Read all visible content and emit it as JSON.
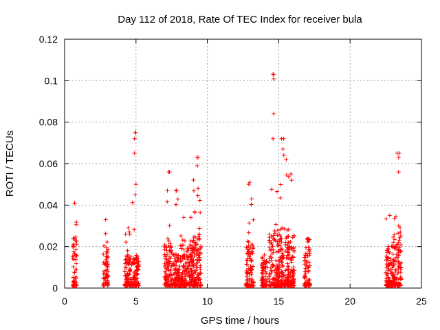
{
  "chart_data": {
    "type": "scatter",
    "title": "Day 112 of 2018, Rate Of TEC Index for receiver bula",
    "xlabel": "GPS time / hours",
    "ylabel": "ROTI / TECUs",
    "xlim": [
      0,
      25
    ],
    "ylim": [
      0,
      0.12
    ],
    "xticks": [
      0,
      5,
      10,
      15,
      20,
      25
    ],
    "xtick_labels": [
      "0",
      "5",
      "10",
      "15",
      "20",
      "25"
    ],
    "yticks": [
      0,
      0.02,
      0.04,
      0.06,
      0.08,
      0.1,
      0.12
    ],
    "ytick_labels": [
      "0",
      "0.02",
      "0.04",
      "0.06",
      "0.08",
      "0.1",
      "0.12"
    ],
    "grid": true,
    "marker": "plus",
    "color": "#ff0000",
    "clusters": [
      {
        "x_start": 0.55,
        "x_end": 0.85,
        "typical_max": 0.025,
        "peak": 0.041
      },
      {
        "x_start": 2.7,
        "x_end": 3.05,
        "typical_max": 0.02,
        "peak": 0.033
      },
      {
        "x_start": 4.2,
        "x_end": 4.7,
        "typical_max": 0.015,
        "peak": 0.029
      },
      {
        "x_start": 4.75,
        "x_end": 5.2,
        "typical_max": 0.015,
        "peak": 0.075
      },
      {
        "x_start": 7.0,
        "x_end": 7.6,
        "typical_max": 0.02,
        "peak": 0.056
      },
      {
        "x_start": 7.6,
        "x_end": 8.1,
        "typical_max": 0.015,
        "peak": 0.047
      },
      {
        "x_start": 8.1,
        "x_end": 8.6,
        "typical_max": 0.02,
        "peak": 0.034
      },
      {
        "x_start": 8.6,
        "x_end": 9.1,
        "typical_max": 0.02,
        "peak": 0.034
      },
      {
        "x_start": 9.0,
        "x_end": 9.55,
        "typical_max": 0.025,
        "peak": 0.063
      },
      {
        "x_start": 12.7,
        "x_end": 13.25,
        "typical_max": 0.02,
        "peak": 0.051
      },
      {
        "x_start": 13.8,
        "x_end": 14.2,
        "typical_max": 0.012,
        "peak": 0.016
      },
      {
        "x_start": 14.3,
        "x_end": 15.0,
        "typical_max": 0.025,
        "peak": 0.103
      },
      {
        "x_start": 15.0,
        "x_end": 15.7,
        "typical_max": 0.025,
        "peak": 0.072
      },
      {
        "x_start": 15.6,
        "x_end": 16.1,
        "typical_max": 0.025,
        "peak": 0.055
      },
      {
        "x_start": 16.8,
        "x_end": 17.2,
        "typical_max": 0.017,
        "peak": 0.024
      },
      {
        "x_start": 22.5,
        "x_end": 23.05,
        "typical_max": 0.02,
        "peak": 0.035
      },
      {
        "x_start": 23.0,
        "x_end": 23.6,
        "typical_max": 0.025,
        "peak": 0.065
      }
    ],
    "notable_points": [
      {
        "x": 14.6,
        "y": 0.103
      },
      {
        "x": 14.65,
        "y": 0.084
      },
      {
        "x": 4.95,
        "y": 0.075
      },
      {
        "x": 4.9,
        "y": 0.072
      },
      {
        "x": 4.9,
        "y": 0.065
      },
      {
        "x": 5.0,
        "y": 0.05
      },
      {
        "x": 4.95,
        "y": 0.045
      },
      {
        "x": 15.2,
        "y": 0.072
      },
      {
        "x": 14.6,
        "y": 0.072
      },
      {
        "x": 15.3,
        "y": 0.067
      },
      {
        "x": 23.45,
        "y": 0.065
      },
      {
        "x": 23.4,
        "y": 0.063
      },
      {
        "x": 9.35,
        "y": 0.063
      },
      {
        "x": 9.3,
        "y": 0.059
      },
      {
        "x": 7.35,
        "y": 0.056
      },
      {
        "x": 23.4,
        "y": 0.056
      },
      {
        "x": 15.9,
        "y": 0.052
      },
      {
        "x": 12.9,
        "y": 0.05
      },
      {
        "x": 9.35,
        "y": 0.048
      },
      {
        "x": 7.2,
        "y": 0.047
      },
      {
        "x": 7.8,
        "y": 0.047
      },
      {
        "x": 0.7,
        "y": 0.041
      },
      {
        "x": 13.1,
        "y": 0.043
      }
    ]
  }
}
